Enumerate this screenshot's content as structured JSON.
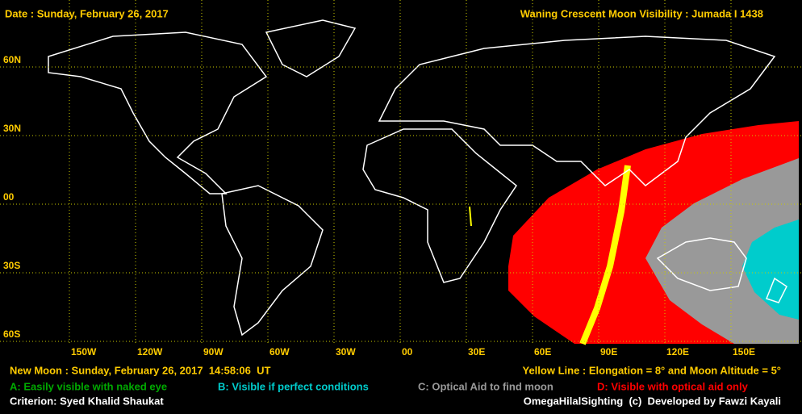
{
  "header": {
    "date": "Date : Sunday, February 26, 2017",
    "title": "Waning Crescent Moon Visibility : Jumada I 1438"
  },
  "map": {
    "latitude_labels": [
      "60N",
      "30N",
      "00",
      "30S",
      "60S"
    ],
    "longitude_labels": [
      "150W",
      "120W",
      "90W",
      "60W",
      "30W",
      "00",
      "30E",
      "60E",
      "90E",
      "120E",
      "150E"
    ]
  },
  "footer": {
    "new_moon": "New Moon : Sunday, February 26, 2017  14:58:06  UT",
    "yellow_line": "Yellow Line : Elongation = 8° and Moon Altitude = 5°",
    "legend": [
      "A: Easily visible with naked eye",
      "B: Visible if perfect conditions",
      "C: Optical Aid to find moon",
      "D: Visible with optical aid only"
    ],
    "criterion": "Criterion: Syed Khalid Shaukat",
    "credit": "OmegaHilalSighting  (c)  Developed by Fawzi Kayali"
  }
}
